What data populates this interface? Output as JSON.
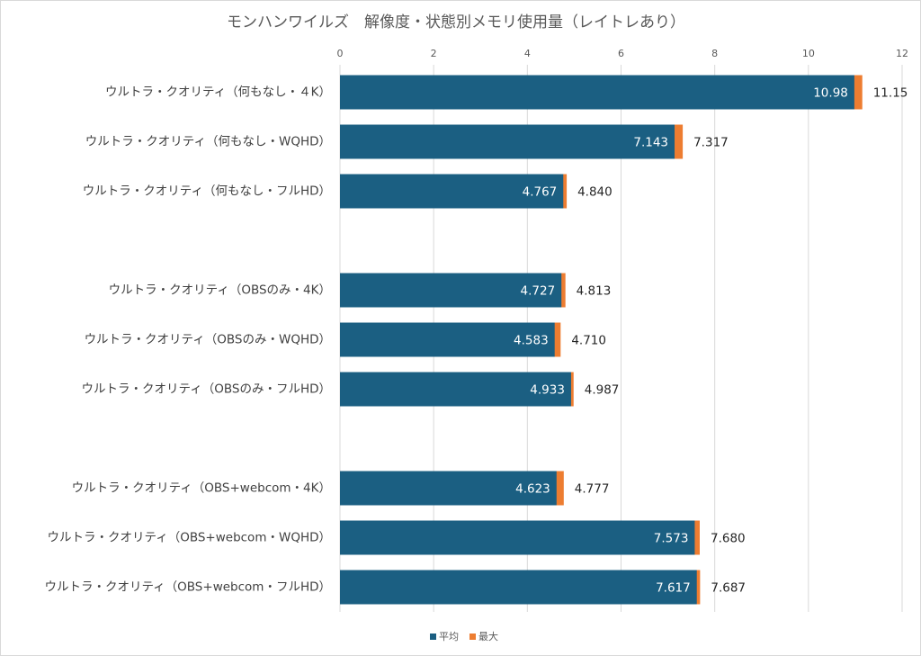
{
  "chart_data": {
    "type": "bar",
    "orientation": "horizontal",
    "title": "モンハンワイルズ　解像度・状態別メモリ使用量（レイトレあり）",
    "categories": [
      "ウルトラ・クオリティ（何もなし・４K）",
      "ウルトラ・クオリティ（何もなし・WQHD）",
      "ウルトラ・クオリティ（何もなし・フルHD）",
      null,
      "ウルトラ・クオリティ（OBSのみ・4K）",
      "ウルトラ・クオリティ（OBSのみ・WQHD）",
      "ウルトラ・クオリティ（OBSのみ・フルHD）",
      null,
      "ウルトラ・クオリティ（OBS+webcom・4K）",
      "ウルトラ・クオリティ（OBS+webcom・WQHD）",
      "ウルトラ・クオリティ（OBS+webcom・フルHD）"
    ],
    "series": [
      {
        "name": "平均",
        "color": "#1b5f82",
        "values": [
          10.98,
          7.143,
          4.767,
          null,
          4.727,
          4.583,
          4.933,
          null,
          4.623,
          7.573,
          7.617
        ],
        "value_labels": [
          "10.98",
          "7.143",
          "4.767",
          null,
          "4.727",
          "4.583",
          "4.933",
          null,
          "4.623",
          "7.573",
          "7.617"
        ]
      },
      {
        "name": "最大",
        "color": "#ed7d31",
        "values": [
          11.15,
          7.317,
          4.84,
          null,
          4.813,
          4.71,
          4.987,
          null,
          4.777,
          7.68,
          7.687
        ],
        "value_labels": [
          "11.15",
          "7.317",
          "4.840",
          null,
          "4.813",
          "4.710",
          "4.987",
          null,
          "4.777",
          "7.680",
          "7.687"
        ]
      }
    ],
    "xlim": [
      0,
      12
    ],
    "xticks": [
      0,
      2,
      4,
      6,
      8,
      10,
      12
    ],
    "grid": true,
    "legend": "bottom"
  }
}
